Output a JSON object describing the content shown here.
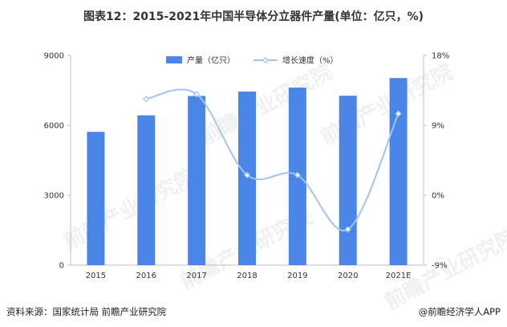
{
  "title": "图表12：2015-2021年中国半导体分立器件产量(单位：亿只，%)",
  "source": "资料来源：国家统计局 前瞻产业研究院",
  "brand": "@前瞻经济学人APP",
  "watermark": "前瞻产业研究院",
  "colors": {
    "bar": "#4a86e8",
    "line": "#9fc5f0",
    "axis": "#bfbfbf"
  },
  "chart_data": {
    "type": "bar",
    "categories": [
      "2015",
      "2016",
      "2017",
      "2018",
      "2019",
      "2020",
      "2021E"
    ],
    "series": [
      {
        "name": "产量（亿只）",
        "type": "bar",
        "axis": "left",
        "values": [
          5720,
          6430,
          7260,
          7450,
          7620,
          7270,
          8030
        ]
      },
      {
        "name": "增长速度（%）",
        "type": "line",
        "axis": "right",
        "values": [
          null,
          12.4,
          13.0,
          2.6,
          2.6,
          -4.4,
          10.5
        ]
      }
    ],
    "y_left": {
      "min": 0,
      "max": 9000,
      "ticks": [
        "0",
        "3000",
        "6000",
        "9000"
      ]
    },
    "y_right": {
      "min": -9,
      "max": 18,
      "ticks": [
        "-9%",
        "0%",
        "9%",
        "18%"
      ]
    },
    "legend_position": "top-center",
    "grid": false
  }
}
